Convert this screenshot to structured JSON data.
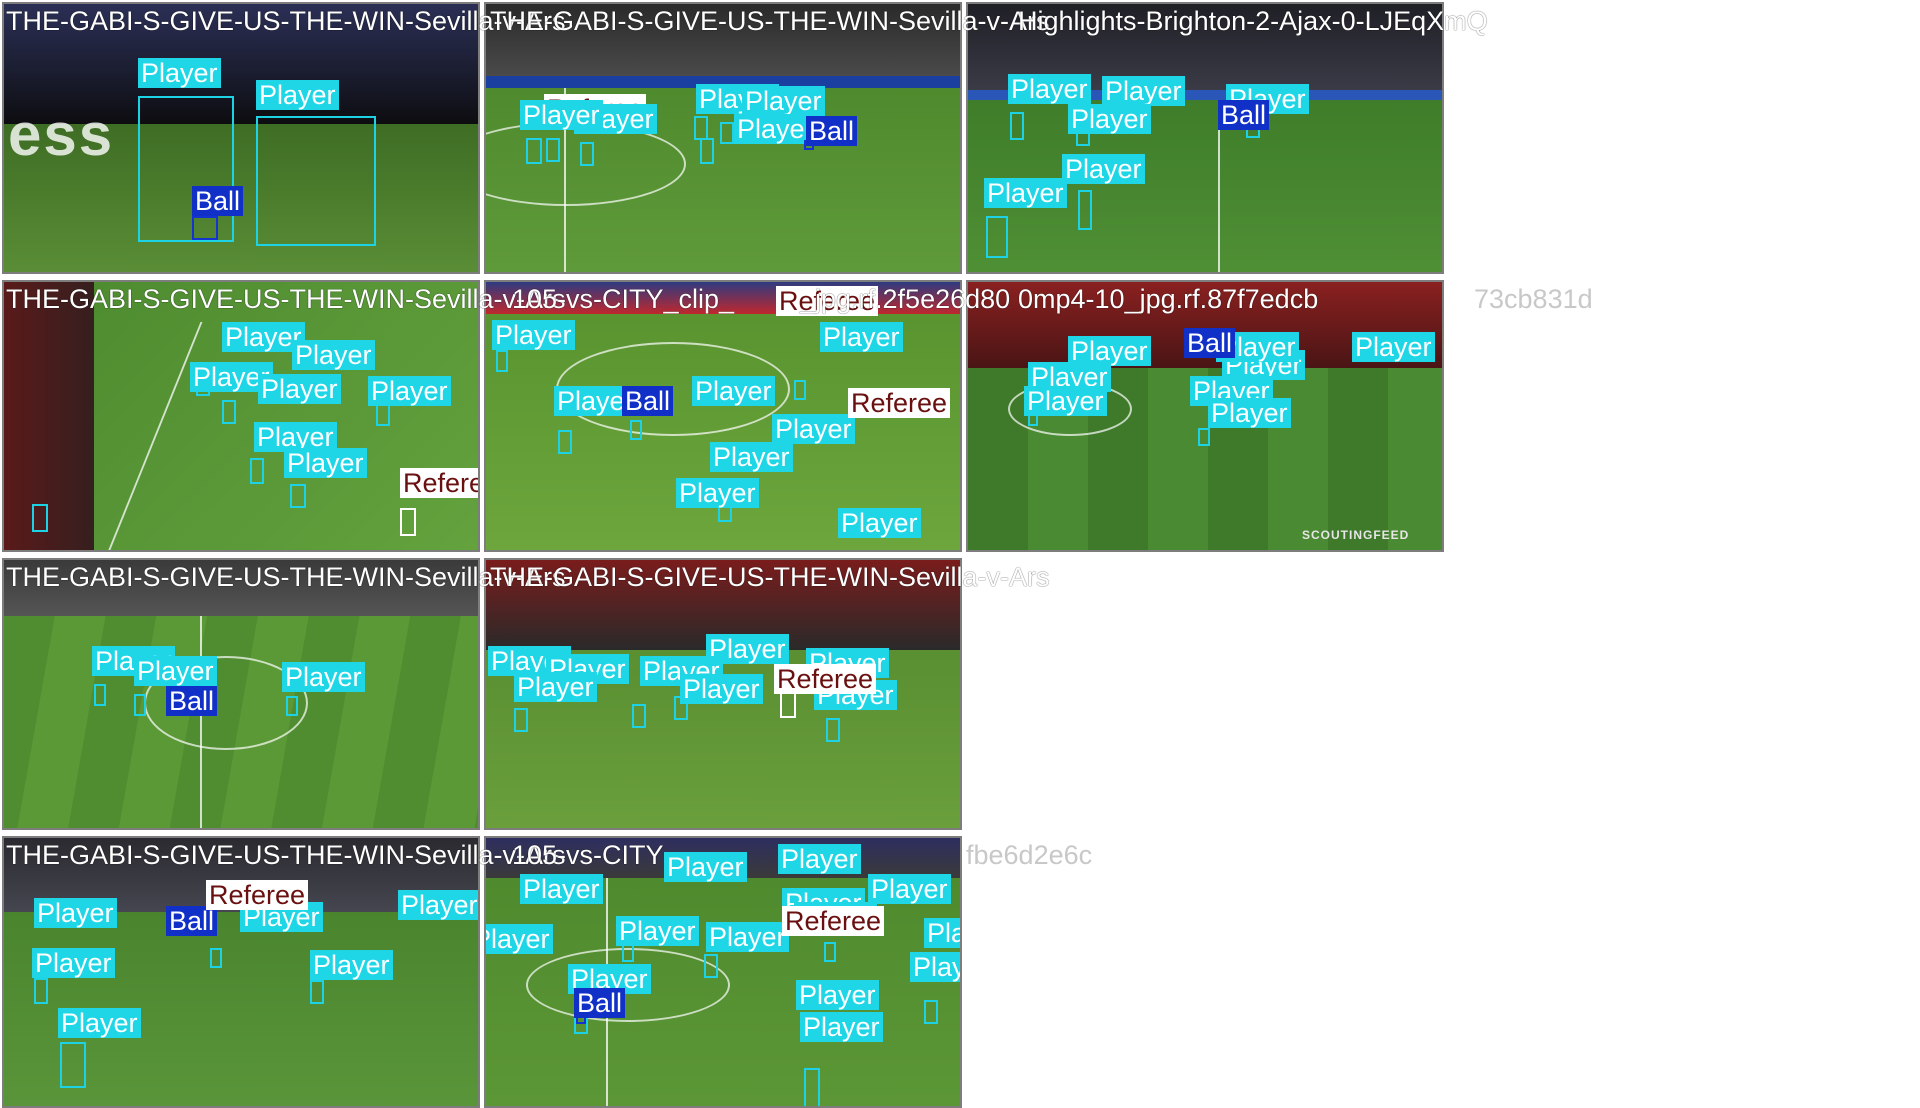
{
  "grid_captions": {
    "row1": "THE-GABI-S-GIVE-US-THE-WIN-Sevilla-v-Ars",
    "row1_b": "THE-GABI-S-GIVE-US-THE-WIN-Sevilla-v-Ars",
    "row1_c": "Highlights-Brighton-2-Ajax-0-LJEqXmQ",
    "row2": "THE-GABI-S-GIVE-US-THE-WIN-Sevilla-v-Ars",
    "row2_b": "105-vs-CITY_clip_",
    "row2_c": "_jpg.rf.2f5e26d80",
    "row2_d": "0mp4-10_jpg.rf.87f7edcb",
    "row2_e": "73cb831d",
    "row3": "THE-GABI-S-GIVE-US-THE-WIN-Sevilla-v-Ars",
    "row3_b": "THE-GABI-S-GIVE-US-THE-WIN-Sevilla-v-Ars",
    "row4": "THE-GABI-S-GIVE-US-THE-WIN-Sevilla-v-Ars",
    "row4_b": "105-vs-CITY",
    "row4_c": "fbe6d2e6c"
  },
  "class_labels": {
    "player": "Player",
    "ball": "Ball",
    "referee": "Referee"
  },
  "watermark": "SCOUTINGFEED",
  "colors": {
    "player_box": "#1ed2e6",
    "ball_box": "#1434d2",
    "referee_box": "#ffffff",
    "tile_border": "#7d7d7d",
    "pitch": "#4f8a2e"
  }
}
